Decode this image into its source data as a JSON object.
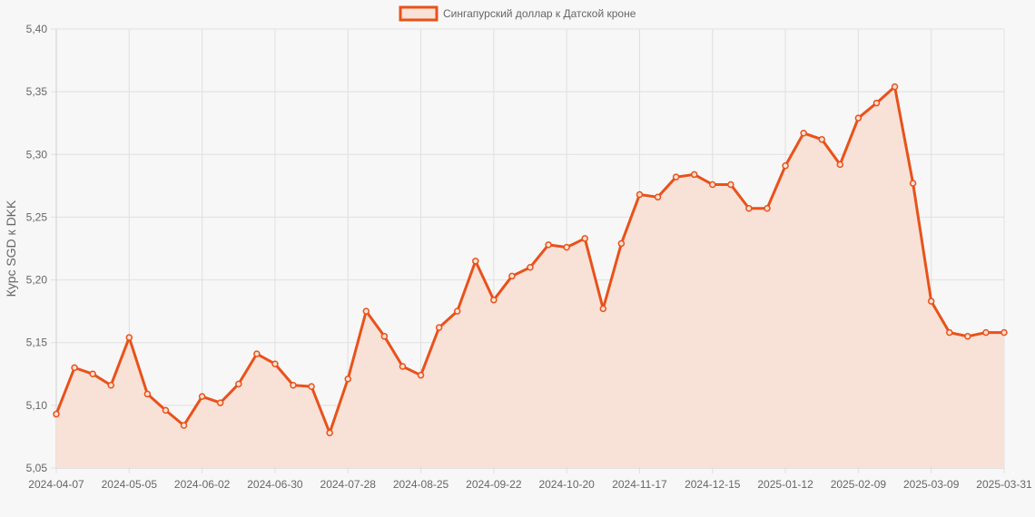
{
  "chart_data": {
    "type": "area",
    "title": "",
    "xlabel": "",
    "ylabel": "Курс SGD к DKK",
    "ylim": [
      5.05,
      5.4
    ],
    "yticks": [
      "5,40",
      "5,35",
      "5,30",
      "5,25",
      "5,20",
      "5,15",
      "5,10",
      "5,05"
    ],
    "ytick_values": [
      5.4,
      5.35,
      5.3,
      5.25,
      5.2,
      5.15,
      5.1,
      5.05
    ],
    "xtick_labels": [
      "2024-04-07",
      "2024-05-05",
      "2024-06-02",
      "2024-06-30",
      "2024-07-28",
      "2024-08-25",
      "2024-09-22",
      "2024-10-20",
      "2024-11-17",
      "2024-12-15",
      "2025-01-12",
      "2025-02-09",
      "2025-03-09",
      "2025-03-31"
    ],
    "grid": true,
    "legend_position": "top-center",
    "colors": {
      "line": "#e8521a",
      "fill": "#f8e1d7",
      "background": "#f7f7f7",
      "grid": "#e0e0e0",
      "text": "#666666"
    },
    "series": [
      {
        "name": "Сингапурский доллар к Датской кроне",
        "values": [
          5.093,
          5.13,
          5.125,
          5.116,
          5.154,
          5.109,
          5.096,
          5.084,
          5.107,
          5.102,
          5.117,
          5.141,
          5.133,
          5.116,
          5.115,
          5.078,
          5.121,
          5.175,
          5.155,
          5.131,
          5.124,
          5.162,
          5.175,
          5.215,
          5.184,
          5.203,
          5.21,
          5.228,
          5.226,
          5.233,
          5.177,
          5.229,
          5.268,
          5.266,
          5.282,
          5.284,
          5.276,
          5.276,
          5.257,
          5.257,
          5.291,
          5.317,
          5.312,
          5.292,
          5.329,
          5.341,
          5.354,
          5.277,
          5.183,
          5.158,
          5.155,
          5.158,
          5.158
        ]
      }
    ]
  }
}
